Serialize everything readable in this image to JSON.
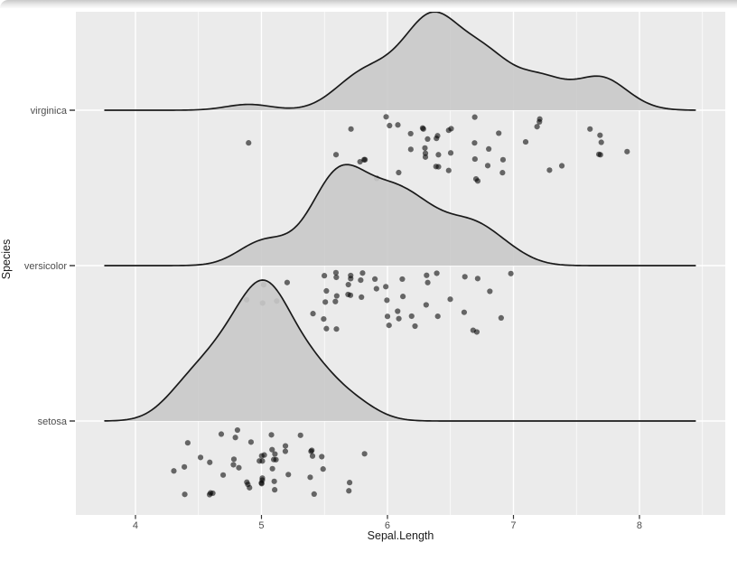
{
  "window": {
    "name": "plot-output-pane"
  },
  "chart_data": {
    "type": "area",
    "variant": "ridgeline-density-with-raincloud-jittered-points",
    "title": "",
    "xlabel": "Sepal.Length",
    "ylabel": "Species",
    "categories": [
      "setosa",
      "versicolor",
      "virginica"
    ],
    "x_ticks": [
      4,
      5,
      6,
      7,
      8
    ],
    "x_minor_ticks": [
      4.5,
      5.5,
      6.5,
      7.5,
      8.5
    ],
    "x_domain": [
      3.527,
      8.681
    ],
    "kde": {
      "bandwidth": 0.181,
      "eval_range": [
        3.757,
        8.443
      ]
    },
    "grid": "white major and minor gridlines on gray panel",
    "legend": "none",
    "series": [
      {
        "name": "setosa",
        "values": [
          5.1,
          4.9,
          4.7,
          4.6,
          5.0,
          5.4,
          4.6,
          5.0,
          4.4,
          4.9,
          5.4,
          4.8,
          4.8,
          4.3,
          5.8,
          5.7,
          5.4,
          5.1,
          5.7,
          5.1,
          5.4,
          5.1,
          4.6,
          5.1,
          4.8,
          5.0,
          5.0,
          5.2,
          5.2,
          4.7,
          4.8,
          5.4,
          5.2,
          5.5,
          4.9,
          5.0,
          5.5,
          4.9,
          4.4,
          5.1,
          5.0,
          4.5,
          4.4,
          5.0,
          5.1,
          4.8,
          5.1,
          4.6,
          5.3,
          5.0
        ]
      },
      {
        "name": "versicolor",
        "values": [
          7.0,
          6.4,
          6.9,
          5.5,
          6.5,
          5.7,
          6.3,
          4.9,
          6.6,
          5.2,
          5.0,
          5.9,
          6.0,
          6.1,
          5.6,
          6.7,
          5.6,
          5.8,
          6.2,
          5.6,
          5.9,
          6.1,
          6.3,
          6.1,
          6.4,
          6.6,
          6.8,
          6.7,
          6.0,
          5.7,
          5.5,
          5.5,
          5.8,
          6.0,
          5.4,
          6.0,
          6.7,
          6.3,
          5.6,
          5.5,
          5.5,
          6.1,
          5.8,
          5.0,
          5.6,
          5.7,
          5.7,
          6.2,
          5.1,
          5.7
        ]
      },
      {
        "name": "virginica",
        "values": [
          6.3,
          5.8,
          7.1,
          6.3,
          6.5,
          7.6,
          4.9,
          7.3,
          6.7,
          7.2,
          6.5,
          6.4,
          6.8,
          5.7,
          5.8,
          6.4,
          6.5,
          7.7,
          7.7,
          6.0,
          6.9,
          5.6,
          7.7,
          6.3,
          6.7,
          7.2,
          6.2,
          6.1,
          6.4,
          7.2,
          7.4,
          7.9,
          6.4,
          6.3,
          6.1,
          7.7,
          6.3,
          6.4,
          6.0,
          6.9,
          6.7,
          6.9,
          5.8,
          6.8,
          6.7,
          6.7,
          6.3,
          6.5,
          6.2,
          5.9
        ]
      }
    ]
  },
  "style": {
    "panel_bg": "#EBEBEB",
    "grid_color": "#FFFFFF",
    "ridge_fill": "#C9C9C9",
    "ridge_fill_opacity": 0.9,
    "ridge_line": "#1A1A1A",
    "point_color": "#000000",
    "point_opacity": 0.57,
    "axis_text": "#4D4D4D",
    "axis_title": "#1A1A1A",
    "tick_color": "#333333"
  }
}
